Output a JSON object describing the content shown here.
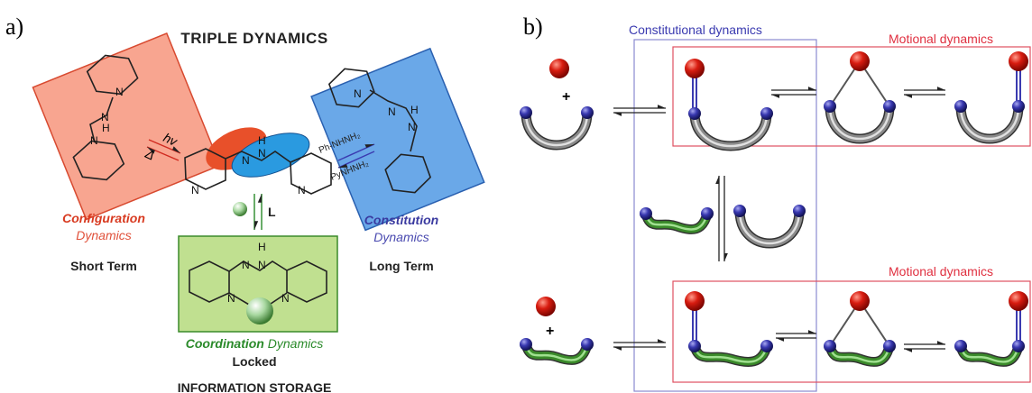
{
  "panel_a": {
    "label": "a)",
    "title": "TRIPLE DYNAMICS",
    "hv": "hv",
    "delta": "Δ",
    "reagent_1": "Ph-NHNH₂",
    "reagent_2": "PyNHNH₂",
    "ligand": "L",
    "configuration": "Configuration",
    "configuration_sub": "Dynamics",
    "short_term": "Short Term",
    "constitution": "Constitution",
    "constitution_sub": "Dynamics",
    "long_term": "Long Term",
    "coordination": "Coordination",
    "coordination_sub": "Dynamics",
    "locked": "Locked",
    "storage": "INFORMATION STORAGE",
    "atoms": [
      "N",
      "N",
      "H",
      "N",
      "N",
      "H",
      "N",
      "N",
      "N",
      "N",
      "H",
      "N",
      "N",
      "N",
      "N",
      "H",
      "N",
      "N"
    ]
  },
  "panel_b": {
    "label": "b)",
    "constitutional": "Constitutional dynamics",
    "motional_top": "Motional dynamics",
    "motional_bottom": "Motional dynamics",
    "plus_top": "+",
    "plus_bottom": "+"
  }
}
